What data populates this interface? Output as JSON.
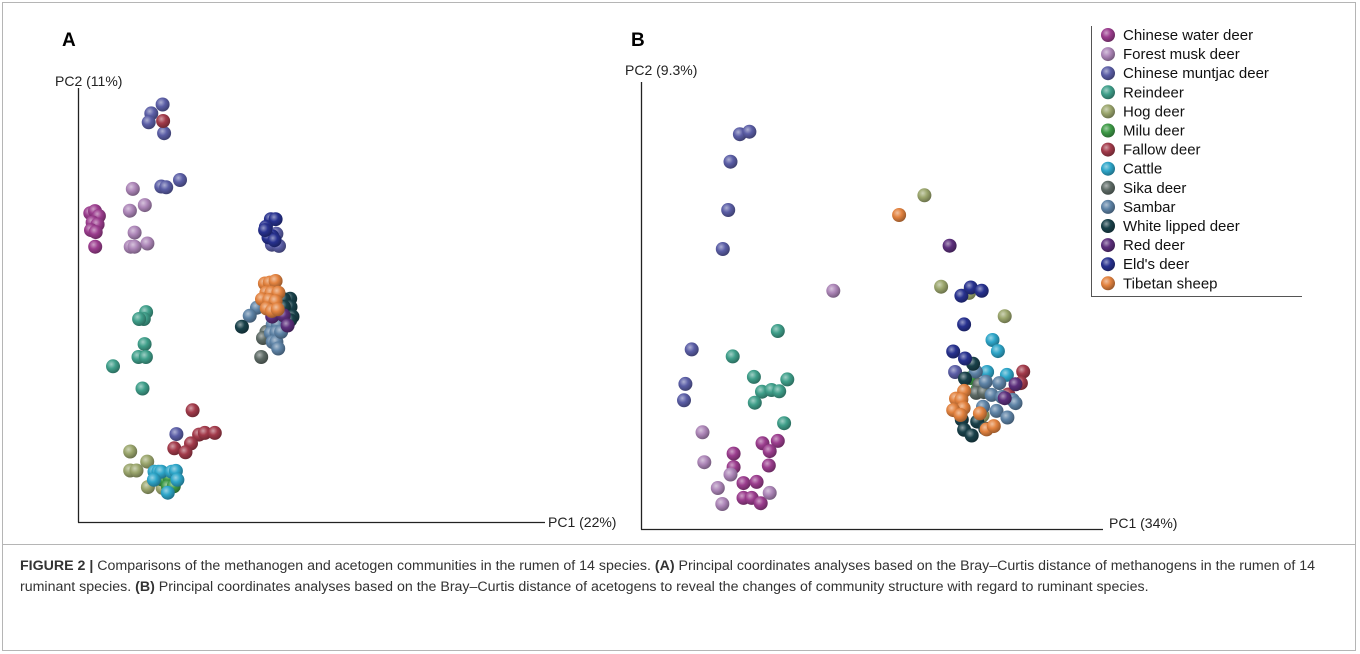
{
  "figure_label": "FIGURE 2 |",
  "caption": {
    "lead": "Comparisons of the methanogen and acetogen communities in the rumen of 14 species.",
    "a_tag": "(A)",
    "a_text": "Principal coordinates analyses based on the Bray–Curtis distance of methanogens in the rumen of 14 ruminant species.",
    "b_tag": "(B)",
    "b_text": "Principal coordinates analyses based on the Bray–Curtis distance of acetogens to reveal the changes of community structure with regard to ruminant species."
  },
  "species_colors": {
    "Chinese water deer": "#9b3d8e",
    "Forest musk deer": "#ad86b8",
    "Chinese muntjac deer": "#5b5ea6",
    "Reindeer": "#3f9f8a",
    "Hog deer": "#9ba66d",
    "Milu deer": "#3e9a46",
    "Fallow deer": "#a23a4a",
    "Cattle": "#2ea6c9",
    "Sika deer": "#5e6b66",
    "Sambar": "#5e83a6",
    "White lipped deer": "#19414a",
    "Red deer": "#5c2f7c",
    "Eld's deer": "#27318f",
    "Tibetan sheep": "#e2823f"
  },
  "chart_data": [
    {
      "type": "scatter",
      "panel": "A",
      "xlabel": "PC1 (22%)",
      "ylabel": "PC2 (11%)",
      "xlim": [
        0,
        100
      ],
      "ylim": [
        0,
        100
      ],
      "grid": false,
      "series": [
        {
          "name": "Chinese water deer",
          "points": [
            [
              2.4,
              71
            ],
            [
              4.2,
              71.5
            ],
            [
              5.7,
              70.3
            ],
            [
              3.3,
              68.7
            ],
            [
              5.2,
              68.2
            ],
            [
              2.7,
              66.8
            ],
            [
              4.5,
              66.3
            ],
            [
              4.3,
              62.7
            ]
          ]
        },
        {
          "name": "Forest musk deer",
          "points": [
            [
              18.7,
              77
            ],
            [
              23.3,
              73
            ],
            [
              17.6,
              71.6
            ],
            [
              19.4,
              66.2
            ],
            [
              24.3,
              63.5
            ],
            [
              17.9,
              62.7
            ],
            [
              19.4,
              62.7
            ]
          ]
        },
        {
          "name": "Chinese muntjac deer",
          "points": [
            [
              30.1,
              97.9
            ],
            [
              25.8,
              95.7
            ],
            [
              24.8,
              93.5
            ],
            [
              30.7,
              90.8
            ],
            [
              29.6,
              77.6
            ],
            [
              31.5,
              77.4
            ],
            [
              36.8,
              79.2
            ],
            [
              35.4,
              16.3
            ],
            [
              70.9,
              65.4
            ],
            [
              73.7,
              65.9
            ],
            [
              72.0,
              63.2
            ],
            [
              74.7,
              62.9
            ]
          ]
        },
        {
          "name": "Reindeer",
          "points": [
            [
              23.8,
              46.5
            ],
            [
              22.9,
              44.8
            ],
            [
              21.1,
              44.8
            ],
            [
              23.2,
              38.6
            ],
            [
              20.9,
              35.4
            ],
            [
              23.7,
              35.4
            ],
            [
              11.1,
              33.1
            ],
            [
              22.4,
              27.6
            ]
          ]
        },
        {
          "name": "Hog deer",
          "points": [
            [
              17.7,
              12.0
            ],
            [
              24.2,
              9.5
            ],
            [
              17.7,
              7.3
            ],
            [
              20.1,
              7.3
            ],
            [
              24.5,
              3.2
            ],
            [
              30.1,
              3.0
            ]
          ]
        },
        {
          "name": "Milu deer",
          "points": [
            [
              29.8,
              5.1
            ],
            [
              31.1,
              5.1
            ],
            [
              32.8,
              5.5
            ],
            [
              32.2,
              3.3
            ],
            [
              34.4,
              3.4
            ]
          ]
        },
        {
          "name": "Fallow deer",
          "points": [
            [
              30.3,
              93.8
            ],
            [
              41.6,
              22.2
            ],
            [
              44.1,
              16.2
            ],
            [
              46.3,
              16.6
            ],
            [
              34.6,
              12.8
            ],
            [
              41.0,
              14.0
            ],
            [
              38.9,
              11.8
            ],
            [
              50.1,
              16.6
            ]
          ]
        },
        {
          "name": "Cattle",
          "points": [
            [
              27.0,
              7.0
            ],
            [
              28.5,
              7.0
            ],
            [
              29.6,
              7.0
            ],
            [
              33.6,
              7.0
            ],
            [
              35.2,
              7.2
            ],
            [
              26.8,
              5.0
            ],
            [
              35.8,
              5.0
            ],
            [
              32.1,
              1.8
            ]
          ]
        },
        {
          "name": "Sika deer",
          "points": [
            [
              69.9,
              41.6
            ],
            [
              68.6,
              40.1
            ],
            [
              67.9,
              35.4
            ]
          ]
        },
        {
          "name": "Sambar",
          "points": [
            [
              66.3,
              47.6
            ],
            [
              63.5,
              45.6
            ],
            [
              72.3,
              43.4
            ],
            [
              74.3,
              43.4
            ],
            [
              71.6,
              41.3
            ],
            [
              73.7,
              41.5
            ],
            [
              72.3,
              39.1
            ],
            [
              73.7,
              39.1
            ],
            [
              75.5,
              41.6
            ],
            [
              74.4,
              37.5
            ]
          ]
        },
        {
          "name": "White lipped deer",
          "points": [
            [
              79.0,
              49.8
            ],
            [
              76.6,
              49.7
            ],
            [
              79.1,
              47.8
            ],
            [
              76.6,
              47.8
            ],
            [
              79.9,
              45.4
            ],
            [
              79.0,
              44.5
            ],
            [
              60.5,
              42.9
            ]
          ]
        },
        {
          "name": "Red deer",
          "points": [
            [
              72.1,
              45.4
            ],
            [
              76.5,
              45.7
            ],
            [
              78.0,
              43.2
            ]
          ]
        },
        {
          "name": "Eld's deer",
          "points": [
            [
              71.6,
              69.5
            ],
            [
              73.4,
              69.5
            ],
            [
              69.7,
              67.6
            ],
            [
              72.1,
              65.3
            ],
            [
              70.7,
              65.0
            ],
            [
              73.0,
              64.3
            ],
            [
              69.4,
              66.8
            ]
          ]
        },
        {
          "name": "Tibetan sheep",
          "points": [
            [
              69.3,
              53.6
            ],
            [
              71.2,
              53.8
            ],
            [
              73.4,
              54.2
            ],
            [
              69.9,
              51.3
            ],
            [
              71.8,
              51.3
            ],
            [
              74.5,
              51.3
            ],
            [
              68.2,
              49.7
            ],
            [
              71.0,
              49.5
            ],
            [
              73.4,
              49.2
            ],
            [
              70.0,
              47.4
            ],
            [
              72.0,
              46.8
            ],
            [
              74.2,
              47.2
            ]
          ]
        }
      ]
    },
    {
      "type": "scatter",
      "panel": "B",
      "xlabel": "PC1 (34%)",
      "ylabel": "PC2 (9.3%)",
      "xlim": [
        0,
        100
      ],
      "ylim": [
        0,
        100
      ],
      "grid": false,
      "legend_position": "top-right",
      "series": [
        {
          "name": "Chinese water deer",
          "points": [
            [
              22.5,
              18.7
            ],
            [
              25.9,
              19.3
            ],
            [
              24.1,
              16.8
            ],
            [
              16.1,
              16.2
            ],
            [
              23.9,
              13.3
            ],
            [
              16.1,
              12.9
            ],
            [
              18.3,
              9.0
            ],
            [
              21.2,
              9.3
            ],
            [
              18.3,
              5.4
            ],
            [
              20.1,
              5.4
            ],
            [
              22.1,
              4.1
            ]
          ]
        },
        {
          "name": "Forest musk deer",
          "points": [
            [
              38.2,
              55.9
            ],
            [
              9.2,
              21.4
            ],
            [
              9.6,
              14.1
            ],
            [
              15.4,
              11.1
            ],
            [
              24.1,
              6.6
            ],
            [
              12.6,
              7.8
            ],
            [
              13.6,
              3.9
            ]
          ]
        },
        {
          "name": "Chinese muntjac deer",
          "points": [
            [
              17.5,
              94.1
            ],
            [
              19.6,
              94.7
            ],
            [
              15.4,
              87.4
            ],
            [
              14.9,
              75.6
            ],
            [
              13.7,
              66.1
            ],
            [
              6.8,
              41.6
            ],
            [
              5.4,
              33.2
            ],
            [
              5.1,
              29.2
            ],
            [
              65.2,
              36.1
            ]
          ]
        },
        {
          "name": "Reindeer",
          "points": [
            [
              25.9,
              46.1
            ],
            [
              15.9,
              39.9
            ],
            [
              20.6,
              34.9
            ],
            [
              22.4,
              31.3
            ],
            [
              24.5,
              31.7
            ],
            [
              26.2,
              31.4
            ],
            [
              28.0,
              34.3
            ],
            [
              20.8,
              28.6
            ],
            [
              27.3,
              23.6
            ]
          ]
        },
        {
          "name": "Hog deer",
          "points": [
            [
              58.4,
              79.2
            ],
            [
              62.1,
              56.9
            ],
            [
              68.3,
              55.4
            ],
            [
              76.2,
              49.7
            ],
            [
              71.3,
              25.5
            ]
          ]
        },
        {
          "name": "Milu deer",
          "points": [
            [
              68.6,
              34.6
            ],
            [
              70.2,
              31.9
            ]
          ]
        },
        {
          "name": "Fallow deer",
          "points": [
            [
              80.3,
              36.2
            ],
            [
              79.8,
              33.4
            ],
            [
              77.0,
              30.6
            ]
          ]
        },
        {
          "name": "Cattle",
          "points": [
            [
              73.5,
              43.9
            ],
            [
              74.7,
              41.2
            ],
            [
              72.3,
              36.1
            ],
            [
              76.7,
              35.4
            ]
          ]
        },
        {
          "name": "Sika deer",
          "points": [
            [
              70.6,
              33.0
            ],
            [
              69.9,
              31.0
            ],
            [
              71.6,
              31.2
            ]
          ]
        },
        {
          "name": "Sambar",
          "points": [
            [
              69.8,
              36.2
            ],
            [
              72.0,
              33.7
            ],
            [
              75.0,
              33.4
            ],
            [
              73.3,
              30.5
            ],
            [
              75.6,
              30.0
            ],
            [
              78.0,
              29.3
            ],
            [
              71.4,
              27.6
            ],
            [
              74.4,
              26.6
            ],
            [
              76.8,
              25.0
            ],
            [
              78.6,
              28.5
            ]
          ]
        },
        {
          "name": "White lipped deer",
          "points": [
            [
              69.2,
              38.1
            ],
            [
              67.4,
              34.5
            ],
            [
              66.7,
              24.5
            ],
            [
              67.2,
              22.0
            ],
            [
              70.1,
              24.0
            ],
            [
              71.9,
              22.3
            ],
            [
              68.9,
              20.6
            ]
          ]
        },
        {
          "name": "Red deer",
          "points": [
            [
              64.0,
              66.9
            ],
            [
              76.2,
              29.7
            ],
            [
              78.6,
              33.1
            ]
          ]
        },
        {
          "name": "Eld's deer",
          "points": [
            [
              66.6,
              54.7
            ],
            [
              68.7,
              56.7
            ],
            [
              71.1,
              55.9
            ],
            [
              67.2,
              47.7
            ],
            [
              64.8,
              41.1
            ],
            [
              67.4,
              39.4
            ]
          ]
        },
        {
          "name": "Tibetan sheep",
          "points": [
            [
              52.8,
              74.4
            ],
            [
              67.2,
              31.5
            ],
            [
              65.4,
              29.6
            ],
            [
              66.6,
              29.4
            ],
            [
              67.1,
              27.3
            ],
            [
              64.8,
              26.8
            ],
            [
              66.4,
              25.6
            ],
            [
              70.7,
              26.0
            ],
            [
              72.2,
              22.1
            ],
            [
              73.8,
              22.9
            ]
          ]
        }
      ]
    }
  ]
}
